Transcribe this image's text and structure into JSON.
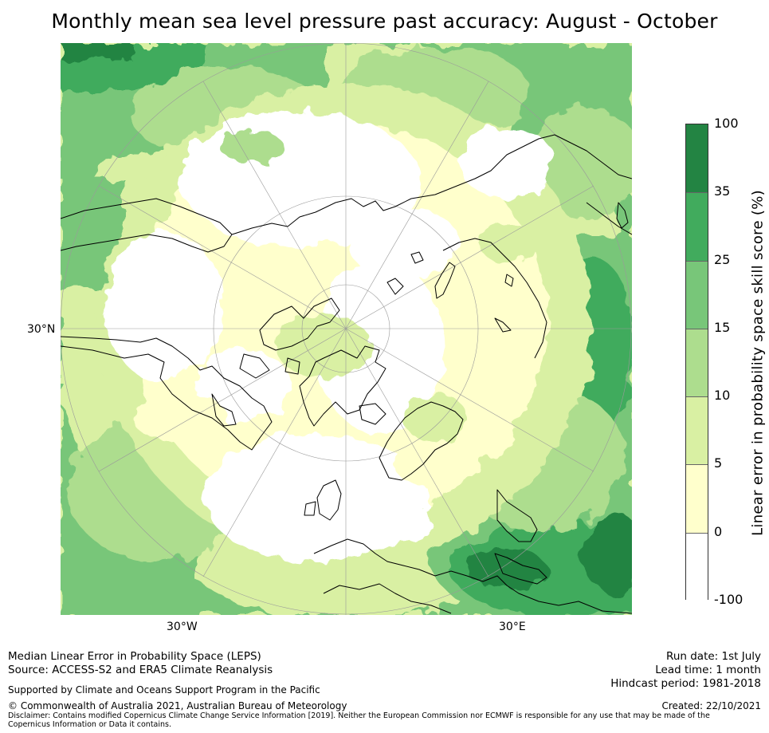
{
  "title": "Monthly mean sea level pressure past accuracy: August - October",
  "map": {
    "lat_label": "30°N",
    "lon_left_label": "30°W",
    "lon_right_label": "30°E",
    "colors": {
      "lvl0": "#ffffff",
      "lvl1": "#ffffcc",
      "lvl2": "#d9f0a3",
      "lvl3": "#addd8e",
      "lvl4": "#78c679",
      "lvl5": "#41ab5d",
      "lvl6": "#238443",
      "coast": "#000000",
      "grid": "#9a9a9a"
    }
  },
  "colorbar": {
    "label": "Linear error in probability space skill score (%)",
    "ticks": [
      "100",
      "35",
      "25",
      "15",
      "10",
      "5",
      "0",
      "-100"
    ],
    "colors": [
      "#238443",
      "#41ab5d",
      "#78c679",
      "#addd8e",
      "#d9f0a3",
      "#ffffcc",
      "#ffffff"
    ]
  },
  "footer": {
    "method": "Median Linear Error in Probability Space (LEPS)",
    "source": "Source: ACCESS-S2 and ERA5 Climate Reanalysis",
    "support": "Supported by Climate and Oceans Support Program in the Pacific",
    "copyright": "© Commonwealth of Australia 2021, Australian Bureau of Meteorology",
    "run_date": "Run date: 1st July",
    "lead_time": "Lead time: 1 month",
    "hindcast": "Hindcast period: 1981-2018",
    "created": "Created: 22/10/2021",
    "disclaimer": "Disclaimer: Contains modified Copernicus Climate Change Service Information [2019]. Neither the European Commission nor ECMWF is responsible for any use that may be made of the Copernicus Information or Data it contains."
  }
}
